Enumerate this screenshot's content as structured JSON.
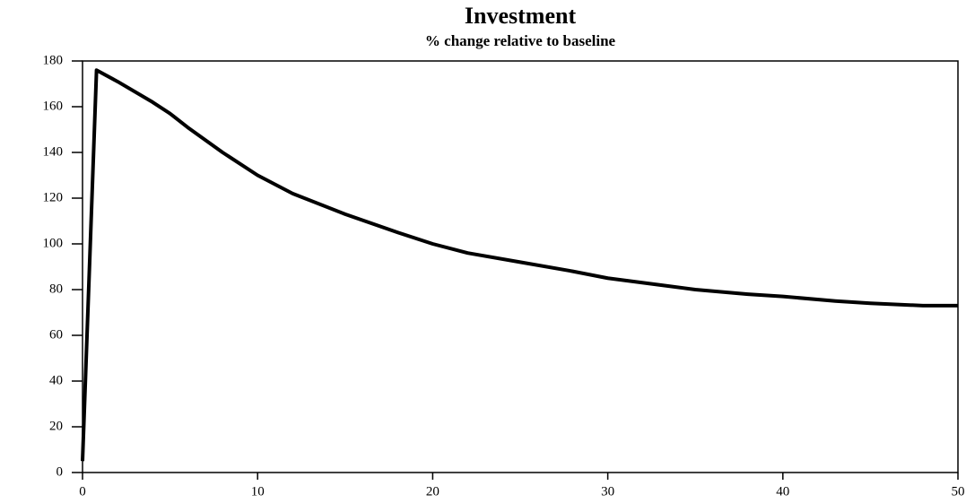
{
  "chart_data": {
    "type": "line",
    "title": "Investment",
    "subtitle": "% change relative to baseline",
    "x": [
      0,
      0.8,
      2,
      4,
      5,
      6,
      8,
      10,
      12,
      15,
      18,
      20,
      22,
      25,
      28,
      30,
      33,
      35,
      38,
      40,
      43,
      45,
      48,
      50
    ],
    "series": [
      {
        "name": "Investment",
        "color": "#000000",
        "values": [
          5,
          176,
          171,
          162,
          157,
          151,
          140,
          130,
          122,
          113,
          105,
          100,
          96,
          92,
          88,
          85,
          82,
          80,
          78,
          77,
          75,
          74,
          73,
          73
        ]
      }
    ],
    "xlim": [
      0,
      50
    ],
    "xticks": [
      0,
      10,
      20,
      30,
      40,
      50
    ],
    "ylim": [
      0,
      180
    ],
    "yticks": [
      0,
      20,
      40,
      60,
      80,
      100,
      120,
      140,
      160,
      180
    ],
    "grid": false
  }
}
